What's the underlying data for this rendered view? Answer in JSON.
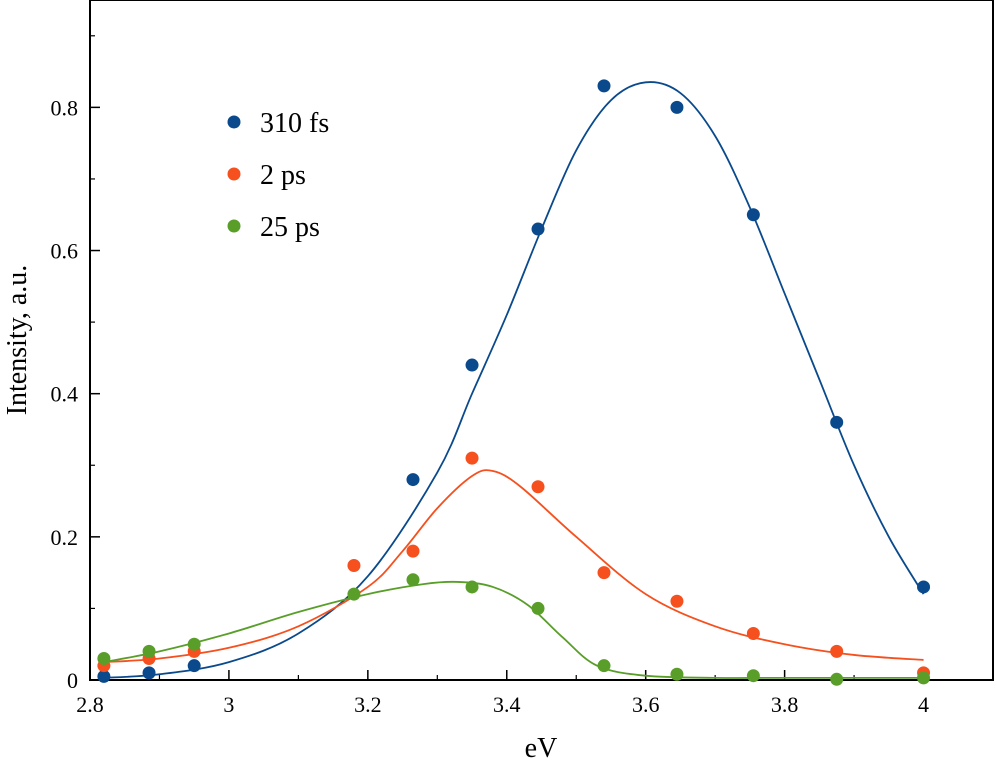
{
  "chart_data": {
    "type": "scatter",
    "xlabel": "eV",
    "ylabel": "Intensity, a.u.",
    "xlim": [
      2.8,
      4.1
    ],
    "ylim": [
      0,
      0.95
    ],
    "x_ticks": [
      2.8,
      3.0,
      3.2,
      3.4,
      3.6,
      3.8,
      4.0
    ],
    "x_tick_labels": [
      "2.8",
      "3",
      "3.2",
      "3.4",
      "3.6",
      "3.8",
      "4"
    ],
    "y_ticks": [
      0,
      0.2,
      0.4,
      0.6,
      0.8
    ],
    "y_tick_labels": [
      "0",
      "0.2",
      "0.4",
      "0.6",
      "0.8"
    ],
    "grid": false,
    "legend_position": "top-left",
    "series": [
      {
        "name": "310 fs",
        "color": "#0a4a8c",
        "points": [
          [
            2.82,
            0.005
          ],
          [
            2.885,
            0.01
          ],
          [
            2.95,
            0.02
          ],
          [
            3.265,
            0.28
          ],
          [
            3.35,
            0.44
          ],
          [
            3.445,
            0.63
          ],
          [
            3.54,
            0.83
          ],
          [
            3.645,
            0.8
          ],
          [
            3.755,
            0.65
          ],
          [
            3.875,
            0.36
          ],
          [
            4.0,
            0.13
          ]
        ],
        "fit": [
          [
            2.82,
            0.003
          ],
          [
            2.9,
            0.008
          ],
          [
            3.0,
            0.025
          ],
          [
            3.1,
            0.065
          ],
          [
            3.2,
            0.145
          ],
          [
            3.3,
            0.29
          ],
          [
            3.35,
            0.4
          ],
          [
            3.4,
            0.51
          ],
          [
            3.45,
            0.63
          ],
          [
            3.5,
            0.74
          ],
          [
            3.55,
            0.81
          ],
          [
            3.6,
            0.835
          ],
          [
            3.65,
            0.82
          ],
          [
            3.7,
            0.76
          ],
          [
            3.75,
            0.66
          ],
          [
            3.8,
            0.54
          ],
          [
            3.85,
            0.42
          ],
          [
            3.9,
            0.3
          ],
          [
            3.95,
            0.2
          ],
          [
            4.0,
            0.12
          ]
        ]
      },
      {
        "name": "2 ps",
        "color": "#f5501e",
        "points": [
          [
            2.82,
            0.02
          ],
          [
            2.885,
            0.03
          ],
          [
            2.95,
            0.04
          ],
          [
            3.18,
            0.16
          ],
          [
            3.265,
            0.18
          ],
          [
            3.35,
            0.31
          ],
          [
            3.445,
            0.27
          ],
          [
            3.54,
            0.15
          ],
          [
            3.645,
            0.11
          ],
          [
            3.755,
            0.065
          ],
          [
            3.875,
            0.04
          ],
          [
            4.0,
            0.01
          ]
        ],
        "fit": [
          [
            2.82,
            0.025
          ],
          [
            2.9,
            0.03
          ],
          [
            3.0,
            0.045
          ],
          [
            3.1,
            0.075
          ],
          [
            3.2,
            0.13
          ],
          [
            3.25,
            0.18
          ],
          [
            3.3,
            0.24
          ],
          [
            3.35,
            0.285
          ],
          [
            3.38,
            0.292
          ],
          [
            3.42,
            0.27
          ],
          [
            3.5,
            0.2
          ],
          [
            3.6,
            0.12
          ],
          [
            3.7,
            0.075
          ],
          [
            3.8,
            0.05
          ],
          [
            3.9,
            0.035
          ],
          [
            4.0,
            0.028
          ]
        ]
      },
      {
        "name": "25 ps",
        "color": "#5a9e2a",
        "points": [
          [
            2.82,
            0.03
          ],
          [
            2.885,
            0.04
          ],
          [
            2.95,
            0.05
          ],
          [
            3.18,
            0.12
          ],
          [
            3.265,
            0.14
          ],
          [
            3.35,
            0.13
          ],
          [
            3.445,
            0.1
          ],
          [
            3.54,
            0.02
          ],
          [
            3.645,
            0.008
          ],
          [
            3.755,
            0.006
          ],
          [
            3.875,
            0.001
          ],
          [
            4.0,
            0.003
          ]
        ],
        "fit": [
          [
            2.82,
            0.025
          ],
          [
            2.9,
            0.04
          ],
          [
            3.0,
            0.065
          ],
          [
            3.1,
            0.095
          ],
          [
            3.2,
            0.12
          ],
          [
            3.28,
            0.134
          ],
          [
            3.33,
            0.137
          ],
          [
            3.38,
            0.13
          ],
          [
            3.43,
            0.105
          ],
          [
            3.48,
            0.06
          ],
          [
            3.53,
            0.02
          ],
          [
            3.6,
            0.006
          ],
          [
            3.7,
            0.003
          ],
          [
            3.8,
            0.003
          ],
          [
            4.0,
            0.003
          ]
        ]
      }
    ]
  }
}
